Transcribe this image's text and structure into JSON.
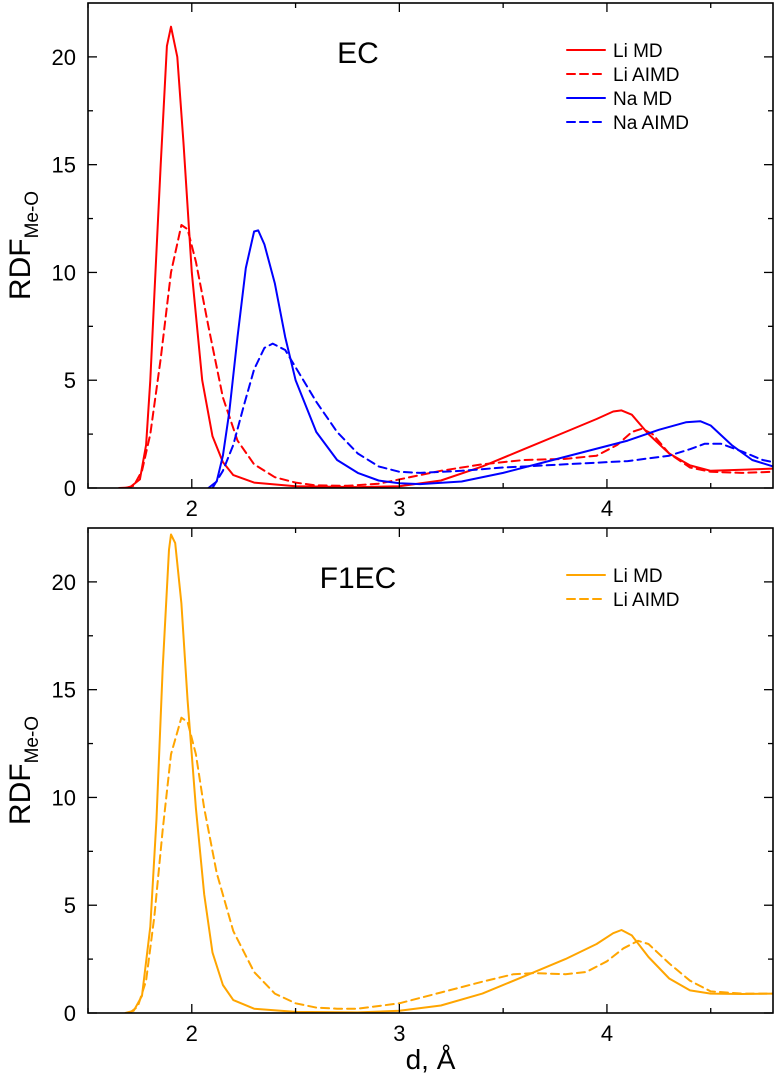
{
  "chart_data": [
    {
      "type": "line",
      "title": "EC",
      "ylabel": "RDF",
      "ylabel_sub": "Me-O",
      "xlabel": "",
      "xlim": [
        1.5,
        4.8
      ],
      "ylim": [
        0,
        22.5
      ],
      "xticks": [
        2,
        3,
        4
      ],
      "yticks": [
        0,
        5,
        10,
        15,
        20
      ],
      "legend_position": "top-right",
      "series": [
        {
          "name": "Li MD",
          "color": "#ff0000",
          "style": "solid",
          "points": [
            [
              1.65,
              0
            ],
            [
              1.7,
              0.02
            ],
            [
              1.75,
              0.4
            ],
            [
              1.78,
              2
            ],
            [
              1.8,
              5
            ],
            [
              1.82,
              9
            ],
            [
              1.85,
              15
            ],
            [
              1.88,
              20.5
            ],
            [
              1.9,
              21.4
            ],
            [
              1.93,
              20
            ],
            [
              1.96,
              16
            ],
            [
              2.0,
              10
            ],
            [
              2.05,
              5
            ],
            [
              2.1,
              2.4
            ],
            [
              2.15,
              1.2
            ],
            [
              2.2,
              0.6
            ],
            [
              2.3,
              0.25
            ],
            [
              2.5,
              0.08
            ],
            [
              2.8,
              0.04
            ],
            [
              3.0,
              0.08
            ],
            [
              3.2,
              0.35
            ],
            [
              3.4,
              1.0
            ],
            [
              3.6,
              1.8
            ],
            [
              3.8,
              2.6
            ],
            [
              3.95,
              3.2
            ],
            [
              4.03,
              3.55
            ],
            [
              4.07,
              3.6
            ],
            [
              4.12,
              3.4
            ],
            [
              4.2,
              2.5
            ],
            [
              4.3,
              1.6
            ],
            [
              4.4,
              1.05
            ],
            [
              4.5,
              0.8
            ],
            [
              4.65,
              0.85
            ],
            [
              4.8,
              0.9
            ]
          ]
        },
        {
          "name": "Li AIMD",
          "color": "#ff0000",
          "style": "dashed",
          "points": [
            [
              1.68,
              0
            ],
            [
              1.72,
              0.1
            ],
            [
              1.76,
              0.8
            ],
            [
              1.8,
              2.5
            ],
            [
              1.85,
              6
            ],
            [
              1.9,
              10
            ],
            [
              1.95,
              12.2
            ],
            [
              1.98,
              12
            ],
            [
              2.02,
              10.5
            ],
            [
              2.08,
              7.5
            ],
            [
              2.15,
              4.2
            ],
            [
              2.22,
              2.2
            ],
            [
              2.3,
              1.1
            ],
            [
              2.4,
              0.5
            ],
            [
              2.5,
              0.25
            ],
            [
              2.6,
              0.12
            ],
            [
              2.75,
              0.1
            ],
            [
              2.9,
              0.2
            ],
            [
              3.0,
              0.4
            ],
            [
              3.2,
              0.8
            ],
            [
              3.4,
              1.1
            ],
            [
              3.6,
              1.3
            ],
            [
              3.8,
              1.35
            ],
            [
              3.95,
              1.5
            ],
            [
              4.05,
              2.0
            ],
            [
              4.12,
              2.6
            ],
            [
              4.17,
              2.75
            ],
            [
              4.22,
              2.5
            ],
            [
              4.3,
              1.6
            ],
            [
              4.4,
              0.95
            ],
            [
              4.5,
              0.75
            ],
            [
              4.65,
              0.7
            ],
            [
              4.8,
              0.75
            ]
          ]
        },
        {
          "name": "Na MD",
          "color": "#0000ff",
          "style": "solid",
          "points": [
            [
              2.08,
              0
            ],
            [
              2.12,
              0.3
            ],
            [
              2.15,
              1.5
            ],
            [
              2.18,
              3.5
            ],
            [
              2.22,
              7
            ],
            [
              2.26,
              10.2
            ],
            [
              2.3,
              11.9
            ],
            [
              2.32,
              11.95
            ],
            [
              2.35,
              11.3
            ],
            [
              2.4,
              9.5
            ],
            [
              2.45,
              7
            ],
            [
              2.5,
              5
            ],
            [
              2.6,
              2.6
            ],
            [
              2.7,
              1.3
            ],
            [
              2.8,
              0.7
            ],
            [
              2.9,
              0.35
            ],
            [
              3.0,
              0.22
            ],
            [
              3.1,
              0.18
            ],
            [
              3.3,
              0.3
            ],
            [
              3.5,
              0.7
            ],
            [
              3.7,
              1.2
            ],
            [
              3.9,
              1.7
            ],
            [
              4.1,
              2.2
            ],
            [
              4.25,
              2.7
            ],
            [
              4.38,
              3.05
            ],
            [
              4.45,
              3.1
            ],
            [
              4.5,
              2.9
            ],
            [
              4.6,
              2.0
            ],
            [
              4.7,
              1.3
            ],
            [
              4.8,
              1.0
            ]
          ]
        },
        {
          "name": "Na AIMD",
          "color": "#0000ff",
          "style": "dashed",
          "points": [
            [
              2.1,
              0
            ],
            [
              2.15,
              0.8
            ],
            [
              2.2,
              2
            ],
            [
              2.25,
              3.8
            ],
            [
              2.3,
              5.5
            ],
            [
              2.35,
              6.5
            ],
            [
              2.39,
              6.7
            ],
            [
              2.45,
              6.4
            ],
            [
              2.5,
              5.6
            ],
            [
              2.6,
              4
            ],
            [
              2.7,
              2.6
            ],
            [
              2.8,
              1.6
            ],
            [
              2.9,
              1.0
            ],
            [
              3.0,
              0.75
            ],
            [
              3.1,
              0.7
            ],
            [
              3.3,
              0.8
            ],
            [
              3.5,
              0.95
            ],
            [
              3.7,
              1.05
            ],
            [
              3.9,
              1.15
            ],
            [
              4.1,
              1.25
            ],
            [
              4.3,
              1.5
            ],
            [
              4.4,
              1.8
            ],
            [
              4.47,
              2.05
            ],
            [
              4.55,
              2.05
            ],
            [
              4.65,
              1.7
            ],
            [
              4.75,
              1.3
            ],
            [
              4.8,
              1.2
            ]
          ]
        }
      ]
    },
    {
      "type": "line",
      "title": "F1EC",
      "ylabel": "RDF",
      "ylabel_sub": "Me-O",
      "xlabel": "d, Å",
      "xlim": [
        1.5,
        4.8
      ],
      "ylim": [
        0,
        22.5
      ],
      "xticks": [
        2,
        3,
        4
      ],
      "yticks": [
        0,
        5,
        10,
        15,
        20
      ],
      "legend_position": "top-right",
      "series": [
        {
          "name": "Li MD",
          "color": "#ffa500",
          "style": "solid",
          "points": [
            [
              1.68,
              0
            ],
            [
              1.72,
              0.1
            ],
            [
              1.76,
              0.8
            ],
            [
              1.8,
              4
            ],
            [
              1.83,
              9
            ],
            [
              1.86,
              16
            ],
            [
              1.89,
              21.5
            ],
            [
              1.9,
              22.2
            ],
            [
              1.92,
              21.8
            ],
            [
              1.95,
              19
            ],
            [
              1.98,
              14.5
            ],
            [
              2.02,
              9.5
            ],
            [
              2.06,
              5.5
            ],
            [
              2.1,
              2.8
            ],
            [
              2.15,
              1.3
            ],
            [
              2.2,
              0.6
            ],
            [
              2.3,
              0.2
            ],
            [
              2.5,
              0.05
            ],
            [
              2.8,
              0.03
            ],
            [
              3.0,
              0.1
            ],
            [
              3.2,
              0.35
            ],
            [
              3.4,
              0.9
            ],
            [
              3.6,
              1.7
            ],
            [
              3.8,
              2.5
            ],
            [
              3.95,
              3.2
            ],
            [
              4.03,
              3.7
            ],
            [
              4.07,
              3.85
            ],
            [
              4.12,
              3.6
            ],
            [
              4.2,
              2.6
            ],
            [
              4.3,
              1.6
            ],
            [
              4.4,
              1.05
            ],
            [
              4.5,
              0.9
            ],
            [
              4.65,
              0.88
            ],
            [
              4.8,
              0.9
            ]
          ]
        },
        {
          "name": "Li AIMD",
          "color": "#ffa500",
          "style": "dashed",
          "points": [
            [
              1.7,
              0
            ],
            [
              1.74,
              0.3
            ],
            [
              1.78,
              1.5
            ],
            [
              1.82,
              4.5
            ],
            [
              1.86,
              8.5
            ],
            [
              1.9,
              12
            ],
            [
              1.95,
              13.7
            ],
            [
              1.98,
              13.5
            ],
            [
              2.02,
              12
            ],
            [
              2.06,
              9.5
            ],
            [
              2.12,
              6.5
            ],
            [
              2.2,
              3.8
            ],
            [
              2.3,
              1.9
            ],
            [
              2.4,
              0.9
            ],
            [
              2.5,
              0.45
            ],
            [
              2.6,
              0.25
            ],
            [
              2.7,
              0.2
            ],
            [
              2.8,
              0.2
            ],
            [
              3.0,
              0.45
            ],
            [
              3.2,
              0.95
            ],
            [
              3.4,
              1.45
            ],
            [
              3.55,
              1.8
            ],
            [
              3.65,
              1.85
            ],
            [
              3.8,
              1.8
            ],
            [
              3.9,
              1.9
            ],
            [
              4.0,
              2.4
            ],
            [
              4.08,
              3.0
            ],
            [
              4.15,
              3.35
            ],
            [
              4.2,
              3.2
            ],
            [
              4.3,
              2.3
            ],
            [
              4.4,
              1.5
            ],
            [
              4.5,
              1.0
            ],
            [
              4.65,
              0.9
            ],
            [
              4.8,
              0.9
            ]
          ]
        }
      ]
    }
  ]
}
